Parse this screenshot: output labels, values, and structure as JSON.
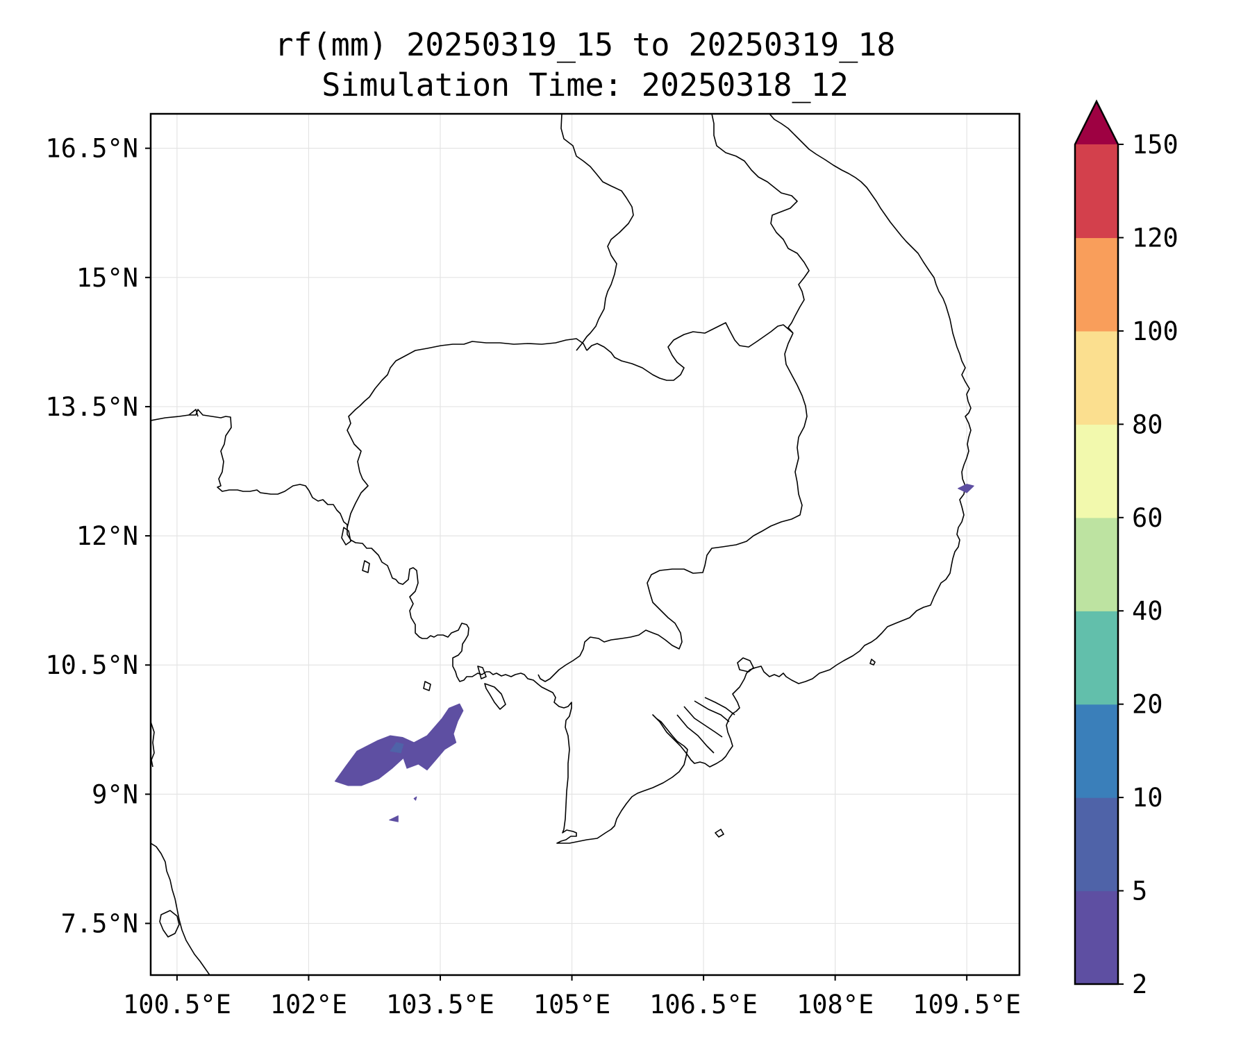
{
  "title": {
    "line1": "rf(mm) 20250319_15 to 20250319_18",
    "line2": "Simulation Time: 20250318_12"
  },
  "map": {
    "lon_range": [
      100.2,
      110.1
    ],
    "lat_range": [
      6.9,
      16.9
    ],
    "lat_ticks": [
      {
        "value": 16.5,
        "label": "16.5°N"
      },
      {
        "value": 15.0,
        "label": "15°N"
      },
      {
        "value": 13.5,
        "label": "13.5°N"
      },
      {
        "value": 12.0,
        "label": "12°N"
      },
      {
        "value": 10.5,
        "label": "10.5°N"
      },
      {
        "value": 9.0,
        "label": "9°N"
      },
      {
        "value": 7.5,
        "label": "7.5°N"
      }
    ],
    "lon_ticks": [
      {
        "value": 100.5,
        "label": "100.5°E"
      },
      {
        "value": 102.0,
        "label": "102°E"
      },
      {
        "value": 103.5,
        "label": "103.5°E"
      },
      {
        "value": 105.0,
        "label": "105°E"
      },
      {
        "value": 106.5,
        "label": "106.5°E"
      },
      {
        "value": 108.0,
        "label": "108°E"
      },
      {
        "value": 109.5,
        "label": "109.5°E"
      }
    ],
    "gridlines": true,
    "line_color": "#000000",
    "grid_color": "#e4e4e4",
    "rain_areas": [
      {
        "name": "gulf-of-thailand-cell",
        "class_min": 2,
        "class_max": 5,
        "color": "#5e4fa2",
        "points": [
          [
            102.3,
            9.15
          ],
          [
            102.42,
            9.32
          ],
          [
            102.55,
            9.5
          ],
          [
            102.78,
            9.62
          ],
          [
            102.93,
            9.68
          ],
          [
            103.07,
            9.66
          ],
          [
            103.2,
            9.6
          ],
          [
            103.35,
            9.68
          ],
          [
            103.52,
            9.88
          ],
          [
            103.6,
            10.0
          ],
          [
            103.72,
            10.05
          ],
          [
            103.76,
            9.97
          ],
          [
            103.7,
            9.85
          ],
          [
            103.65,
            9.7
          ],
          [
            103.68,
            9.6
          ],
          [
            103.55,
            9.52
          ],
          [
            103.45,
            9.4
          ],
          [
            103.35,
            9.28
          ],
          [
            103.25,
            9.35
          ],
          [
            103.12,
            9.3
          ],
          [
            103.08,
            9.42
          ],
          [
            102.95,
            9.3
          ],
          [
            102.8,
            9.18
          ],
          [
            102.6,
            9.1
          ],
          [
            102.45,
            9.1
          ]
        ]
      },
      {
        "name": "gulf-of-thailand-core",
        "class_min": 5,
        "class_max": 10,
        "color": "#4f63a8",
        "points": [
          [
            102.93,
            9.5
          ],
          [
            103.0,
            9.6
          ],
          [
            103.08,
            9.58
          ],
          [
            103.05,
            9.48
          ]
        ]
      },
      {
        "name": "fragment-a",
        "class_min": 2,
        "class_max": 5,
        "color": "#5e4fa2",
        "points": [
          [
            102.92,
            8.7
          ],
          [
            103.02,
            8.75
          ],
          [
            103.02,
            8.68
          ]
        ]
      },
      {
        "name": "fragment-b",
        "class_min": 2,
        "class_max": 5,
        "color": "#5e4fa2",
        "points": [
          [
            103.2,
            8.95
          ],
          [
            103.23,
            8.97
          ],
          [
            103.22,
            8.93
          ]
        ]
      },
      {
        "name": "central-vietnam-coast-cell",
        "class_min": 2,
        "class_max": 5,
        "color": "#5e4fa2",
        "points": [
          [
            109.4,
            12.55
          ],
          [
            109.5,
            12.6
          ],
          [
            109.58,
            12.58
          ],
          [
            109.5,
            12.5
          ]
        ]
      }
    ]
  },
  "colorbar": {
    "levels": [
      2,
      5,
      10,
      20,
      40,
      60,
      80,
      100,
      120,
      150
    ],
    "labels": [
      "2",
      "5",
      "10",
      "20",
      "40",
      "60",
      "80",
      "100",
      "120",
      "150"
    ],
    "colors": [
      "#5e4fa2",
      "#4f63a8",
      "#3a7fba",
      "#62bfab",
      "#bde3a1",
      "#f2f9ad",
      "#fbdf8f",
      "#f99e5b",
      "#d3404c"
    ],
    "extend_color": "#9e0142"
  }
}
